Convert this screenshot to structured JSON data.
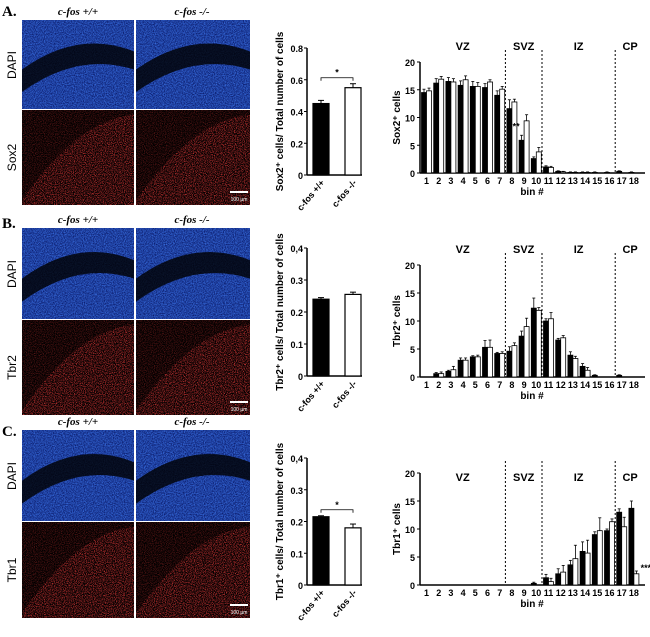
{
  "panels": [
    {
      "label": "A.",
      "stain": "Sox2",
      "counterstain": "DAPI",
      "genotypes": [
        "c-fos +/+",
        "c-fos -/-"
      ],
      "scale_bar": "100 µm"
    },
    {
      "label": "B.",
      "stain": "Tbr2",
      "counterstain": "DAPI",
      "genotypes": [
        "c-fos +/+",
        "c-fos -/-"
      ],
      "scale_bar": "100 µm"
    },
    {
      "label": "C.",
      "stain": "Tbr1",
      "counterstain": "DAPI",
      "genotypes": [
        "c-fos +/+",
        "c-fos -/-"
      ],
      "scale_bar": "100 µm"
    }
  ],
  "colors": {
    "wildtype": "#000000",
    "knockout": "#ffffff",
    "dapi": "#1a4fd8",
    "marker": "#e01010"
  },
  "chart_data": [
    {
      "type": "bar",
      "title": "",
      "ylabel": "Sox2⁺ cells/ Total number of cells",
      "categories": [
        "c-fos +/+",
        "c-fos -/-"
      ],
      "values": [
        0.45,
        0.55
      ],
      "errors": [
        0.02,
        0.025
      ],
      "ylim": [
        0,
        0.8
      ],
      "yticks": [
        "0",
        "0.2",
        "0.4",
        "0.6",
        "0.8"
      ],
      "significance": "*"
    },
    {
      "type": "bar",
      "ylabel": "Sox2⁺ cells",
      "xlabel": "bin #",
      "ylim": [
        0,
        20
      ],
      "yticks": [
        "0",
        "5",
        "10",
        "15",
        "20"
      ],
      "categories": [
        "1",
        "2",
        "3",
        "4",
        "5",
        "6",
        "7",
        "8",
        "9",
        "10",
        "11",
        "12",
        "13",
        "14",
        "15",
        "16",
        "17",
        "18"
      ],
      "zones": [
        "VZ",
        "SVZ",
        "IZ",
        "CP"
      ],
      "zone_boundaries_after_bin": [
        7,
        10,
        16
      ],
      "series": [
        {
          "name": "c-fos +/+",
          "values": [
            14.5,
            16.2,
            16.5,
            15.8,
            15.6,
            15.4,
            14.0,
            11.6,
            5.9,
            2.6,
            1.1,
            0.3,
            0.1,
            0.1,
            0.1,
            0.1,
            0.3,
            0.1
          ],
          "errors": [
            0.6,
            0.8,
            0.7,
            0.8,
            0.9,
            0.7,
            0.8,
            1.6,
            0.9,
            0.3,
            0.2,
            0.1,
            0.1,
            0.1,
            0.1,
            0.1,
            0.1,
            0.1
          ]
        },
        {
          "name": "c-fos -/-",
          "values": [
            14.8,
            16.9,
            16.4,
            16.8,
            15.6,
            16.4,
            15.1,
            12.8,
            9.4,
            3.8,
            1.0,
            0.2,
            0.1,
            0.1,
            0,
            0,
            0,
            0
          ],
          "errors": [
            0.5,
            0.5,
            0.6,
            0.7,
            0.7,
            0.4,
            0.5,
            0.5,
            1.1,
            0.8,
            0.2,
            0.1,
            0.1,
            0.1,
            0,
            0,
            0,
            0
          ]
        }
      ],
      "annotations": [
        {
          "bin": "9",
          "text": "**"
        }
      ]
    },
    {
      "type": "bar",
      "ylabel": "Tbr2⁺ cells/ Total number of cells",
      "categories": [
        "c-fos +/+",
        "c-fos -/-"
      ],
      "values": [
        0.24,
        0.255
      ],
      "errors": [
        0.005,
        0.007
      ],
      "ylim": [
        0,
        0.4
      ],
      "yticks": [
        "0",
        "0.1",
        "0.2",
        "0.3",
        "0,4"
      ]
    },
    {
      "type": "bar",
      "ylabel": "Tbr2⁺ cells",
      "xlabel": "bin #",
      "ylim": [
        0,
        20
      ],
      "yticks": [
        "0",
        "5",
        "10",
        "15",
        "20"
      ],
      "categories": [
        "1",
        "2",
        "3",
        "4",
        "5",
        "6",
        "7",
        "8",
        "9",
        "10",
        "11",
        "12",
        "13",
        "14",
        "15",
        "16",
        "17",
        "18"
      ],
      "zones": [
        "VZ",
        "SVZ",
        "IZ",
        "CP"
      ],
      "zone_boundaries_after_bin": [
        7,
        10,
        16
      ],
      "series": [
        {
          "name": "c-fos +/+",
          "values": [
            0,
            0.6,
            1.0,
            3.0,
            3.6,
            5.3,
            4.2,
            4.6,
            7.3,
            12.3,
            10.0,
            6.6,
            3.9,
            1.9,
            0.3,
            0,
            0.3,
            0
          ],
          "errors": [
            0,
            0.2,
            0.2,
            0.4,
            0.2,
            1.2,
            0.2,
            0.8,
            0.9,
            1.8,
            0.4,
            0.3,
            0.6,
            0.5,
            0.1,
            0,
            0.1,
            0
          ]
        },
        {
          "name": "c-fos -/-",
          "values": [
            0,
            0.6,
            1.3,
            3.0,
            3.6,
            5.3,
            4.2,
            5.6,
            9.0,
            11.9,
            10.4,
            7.0,
            3.3,
            1.2,
            0,
            0,
            0,
            0
          ],
          "errors": [
            0,
            0.3,
            0.6,
            0.4,
            0.3,
            1.3,
            0.3,
            0.5,
            1.5,
            0.5,
            1.1,
            0.4,
            0.4,
            0.5,
            0,
            0,
            0,
            0
          ]
        }
      ]
    },
    {
      "type": "bar",
      "ylabel": "Tbr1⁺ cells/ Total number of cells",
      "categories": [
        "c-fos +/+",
        "c-fos -/-"
      ],
      "values": [
        0.215,
        0.18
      ],
      "errors": [
        0.003,
        0.012
      ],
      "ylim": [
        0,
        0.4
      ],
      "yticks": [
        "0",
        "0.1",
        "0.2",
        "0.3",
        "0,4"
      ],
      "significance": "*"
    },
    {
      "type": "bar",
      "ylabel": "Tbr1⁺ cells",
      "xlabel": "bin #",
      "ylim": [
        0,
        20
      ],
      "yticks": [
        "0",
        "5",
        "10",
        "15",
        "20"
      ],
      "categories": [
        "1",
        "2",
        "3",
        "4",
        "5",
        "6",
        "7",
        "8",
        "9",
        "10",
        "11",
        "12",
        "13",
        "14",
        "15",
        "16",
        "17",
        "18"
      ],
      "zones": [
        "VZ",
        "SVZ",
        "IZ",
        "CP"
      ],
      "zone_boundaries_after_bin": [
        7,
        10,
        16
      ],
      "series": [
        {
          "name": "c-fos +/+",
          "values": [
            0,
            0,
            0,
            0,
            0,
            0,
            0,
            0,
            0,
            0.3,
            1.3,
            2.0,
            3.6,
            6.0,
            9.0,
            9.7,
            13.0,
            13.7
          ],
          "errors": [
            0,
            0,
            0,
            0,
            0,
            0,
            0,
            0,
            0,
            0.2,
            0.6,
            0.9,
            0.8,
            1.7,
            0.5,
            0.3,
            0.6,
            1.3
          ]
        },
        {
          "name": "c-fos -/-",
          "values": [
            0,
            0,
            0,
            0,
            0,
            0,
            0,
            0,
            0,
            0,
            0.6,
            2.3,
            4.7,
            5.7,
            9.7,
            11.3,
            10.4,
            2.0
          ],
          "errors": [
            0,
            0,
            0,
            0,
            0,
            0,
            0,
            0,
            0,
            0,
            0.6,
            1.2,
            2.4,
            2.3,
            2.3,
            0.5,
            1.7,
            0.5
          ]
        }
      ],
      "annotations": [
        {
          "bin": "18",
          "text": "***"
        }
      ]
    }
  ]
}
